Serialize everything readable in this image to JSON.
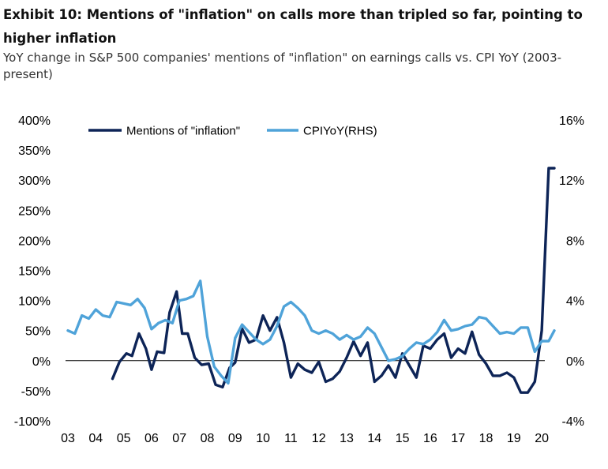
{
  "title": "Exhibit 10: Mentions of \"inflation\" on calls more than tripled so far, pointing to higher inflation",
  "subtitle": "YoY change in S&P 500 companies' mentions of \"inflation\" on earnings calls vs. CPI YoY (2003-present)",
  "colors": {
    "mentions": "#0d2457",
    "cpi": "#4fa3d9",
    "axis": "#000000"
  },
  "chart_data": {
    "type": "line",
    "title": "Exhibit 10: Mentions of \"inflation\" on calls more than tripled so far, pointing to higher inflation",
    "xlabel": "",
    "ylabel": "",
    "y_left_lim": [
      -100,
      400
    ],
    "y_right_lim": [
      -4,
      16
    ],
    "y_left_ticks": [
      "400%",
      "350%",
      "300%",
      "250%",
      "200%",
      "150%",
      "100%",
      "50%",
      "0%",
      "-50%",
      "-100%"
    ],
    "y_right_ticks": [
      "16%",
      "12%",
      "8%",
      "4%",
      "0%",
      "-4%"
    ],
    "x_ticks": [
      "03",
      "04",
      "05",
      "06",
      "07",
      "08",
      "09",
      "10",
      "11",
      "12",
      "13",
      "14",
      "15",
      "16",
      "17",
      "18",
      "19",
      "20"
    ],
    "legend_position": "top",
    "grid": false,
    "series": [
      {
        "name": "Mentions of \"inflation\"",
        "axis": "left",
        "color": "#0d2457",
        "x": [
          2004.6,
          2004.85,
          2005.1,
          2005.3,
          2005.55,
          2005.8,
          2006.0,
          2006.2,
          2006.45,
          2006.65,
          2006.9,
          2007.1,
          2007.3,
          2007.55,
          2007.8,
          2008.05,
          2008.3,
          2008.55,
          2008.8,
          2009.0,
          2009.25,
          2009.5,
          2009.75,
          2010.0,
          2010.25,
          2010.5,
          2010.75,
          2011.0,
          2011.25,
          2011.5,
          2011.75,
          2012.0,
          2012.25,
          2012.5,
          2012.75,
          2013.0,
          2013.25,
          2013.5,
          2013.75,
          2014.0,
          2014.25,
          2014.5,
          2014.75,
          2015.0,
          2015.25,
          2015.5,
          2015.75,
          2016.0,
          2016.25,
          2016.5,
          2016.75,
          2017.0,
          2017.25,
          2017.5,
          2017.75,
          2018.0,
          2018.25,
          2018.5,
          2018.75,
          2019.0,
          2019.25,
          2019.5,
          2019.75,
          2020.0,
          2020.25,
          2020.45
        ],
        "values": [
          -30,
          -2,
          12,
          8,
          45,
          20,
          -15,
          15,
          13,
          80,
          115,
          45,
          45,
          5,
          -7,
          -5,
          -40,
          -44,
          -12,
          -3,
          53,
          30,
          35,
          75,
          50,
          72,
          30,
          -28,
          -5,
          -15,
          -20,
          -2,
          -35,
          -30,
          -18,
          5,
          32,
          8,
          30,
          -35,
          -25,
          -8,
          -28,
          12,
          -8,
          -28,
          25,
          20,
          35,
          45,
          5,
          20,
          12,
          48,
          10,
          -5,
          -25,
          -25,
          -20,
          -28,
          -53,
          -53,
          -35,
          50,
          320,
          320
        ]
      },
      {
        "name": "CPIYoY(RHS)",
        "axis": "right",
        "color": "#4fa3d9",
        "x": [
          2003.0,
          2003.25,
          2003.5,
          2003.75,
          2004.0,
          2004.25,
          2004.5,
          2004.75,
          2005.0,
          2005.25,
          2005.5,
          2005.75,
          2006.0,
          2006.25,
          2006.5,
          2006.75,
          2007.0,
          2007.25,
          2007.5,
          2007.75,
          2008.0,
          2008.25,
          2008.5,
          2008.75,
          2009.0,
          2009.25,
          2009.5,
          2009.75,
          2010.0,
          2010.25,
          2010.5,
          2010.75,
          2011.0,
          2011.25,
          2011.5,
          2011.75,
          2012.0,
          2012.25,
          2012.5,
          2012.75,
          2013.0,
          2013.25,
          2013.5,
          2013.75,
          2014.0,
          2014.25,
          2014.5,
          2014.75,
          2015.0,
          2015.25,
          2015.5,
          2015.75,
          2016.0,
          2016.25,
          2016.5,
          2016.75,
          2017.0,
          2017.25,
          2017.5,
          2017.75,
          2018.0,
          2018.25,
          2018.5,
          2018.75,
          2019.0,
          2019.25,
          2019.5,
          2019.75,
          2020.0,
          2020.25,
          2020.45
        ],
        "values": [
          2.0,
          1.8,
          3.0,
          2.8,
          3.4,
          3.0,
          2.9,
          3.9,
          3.8,
          3.7,
          4.1,
          3.5,
          2.1,
          2.5,
          2.7,
          2.5,
          4.0,
          4.1,
          4.3,
          5.3,
          1.6,
          -0.4,
          -1.0,
          -1.5,
          1.5,
          2.4,
          1.9,
          1.4,
          1.1,
          1.4,
          2.3,
          3.6,
          3.9,
          3.5,
          3.0,
          2.0,
          1.8,
          2.0,
          1.8,
          1.4,
          1.7,
          1.4,
          1.6,
          2.2,
          1.8,
          0.9,
          0.0,
          0.1,
          0.3,
          0.8,
          1.2,
          1.1,
          1.4,
          1.9,
          2.7,
          2.0,
          2.1,
          2.3,
          2.4,
          2.9,
          2.8,
          2.3,
          1.8,
          1.9,
          1.8,
          2.2,
          2.2,
          0.6,
          1.3,
          1.3,
          2.0
        ]
      }
    ]
  }
}
